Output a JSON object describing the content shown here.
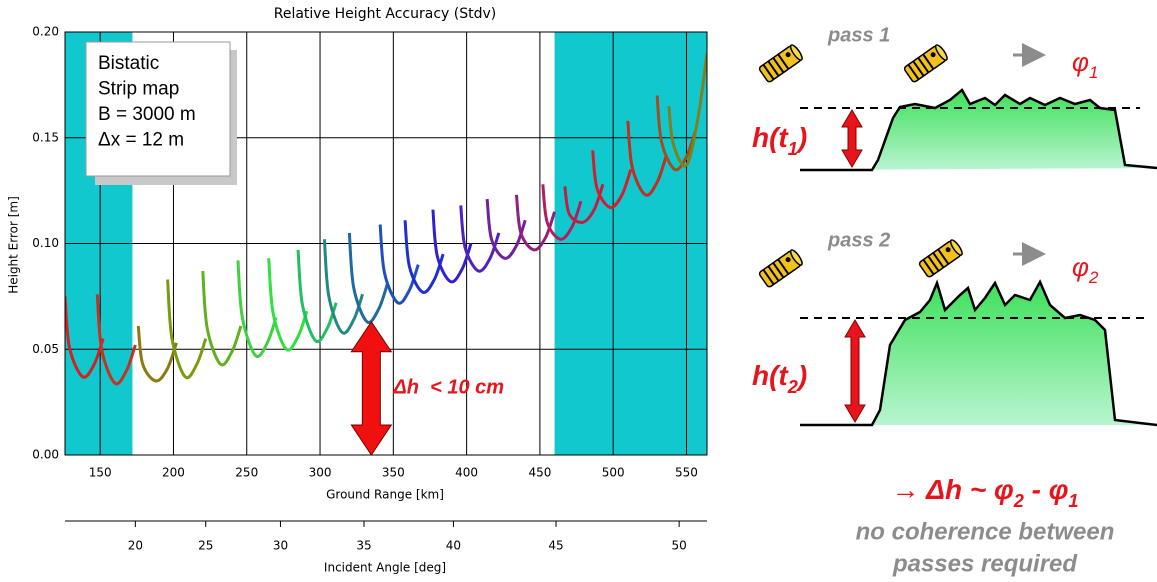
{
  "chart_data": {
    "type": "line",
    "title": "Relative Height Accuracy (Stdv)",
    "x_label": "Ground Range [km]",
    "y_label": "Height Error [m]",
    "x2_label": "Incident Angle [deg]",
    "xlim": [
      126,
      564
    ],
    "ylim": [
      0,
      0.2
    ],
    "xticks": [
      150,
      200,
      250,
      300,
      350,
      400,
      450,
      500,
      550
    ],
    "yticks": [
      {
        "value": 0,
        "label": "0.00"
      },
      {
        "value": 0.05,
        "label": "0.05"
      },
      {
        "value": 0.1,
        "label": "0.10"
      },
      {
        "value": 0.15,
        "label": "0.15"
      },
      {
        "value": 0.2,
        "label": "0.20"
      }
    ],
    "x2ticks": [
      20,
      25,
      30,
      35,
      40,
      45,
      50
    ],
    "x2tick_ground_range": [
      174,
      222,
      273,
      330,
      391,
      461,
      545
    ],
    "grid": true,
    "bands": [
      [
        126,
        172
      ],
      [
        460,
        564
      ]
    ],
    "band_color": "#12c8cf",
    "text_box": [
      "Bistatic",
      "Strip map",
      "B = 3000 m",
      "Δx = 12 m"
    ],
    "annotation": "Δh  < 10 cm",
    "series": [
      {
        "color": "#d42020",
        "x": [
          126,
          129,
          138,
          146,
          152
        ],
        "values": [
          0.075,
          0.051,
          0.037,
          0.043,
          0.055
        ]
      },
      {
        "color": "#c83020",
        "x": [
          148,
          151,
          160,
          168,
          174
        ],
        "values": [
          0.076,
          0.05,
          0.034,
          0.04,
          0.052
        ]
      },
      {
        "color": "#8a7a10",
        "x": [
          176,
          179,
          188,
          196,
          202
        ],
        "values": [
          0.061,
          0.043,
          0.035,
          0.041,
          0.053
        ]
      },
      {
        "color": "#7a9a10",
        "x": [
          196,
          199,
          208,
          216,
          222
        ],
        "values": [
          0.083,
          0.055,
          0.037,
          0.043,
          0.055
        ]
      },
      {
        "color": "#60b020",
        "x": [
          220,
          223,
          232,
          240,
          246
        ],
        "values": [
          0.087,
          0.06,
          0.043,
          0.049,
          0.061
        ]
      },
      {
        "color": "#40d040",
        "x": [
          244,
          247,
          256,
          264,
          270
        ],
        "values": [
          0.092,
          0.065,
          0.047,
          0.053,
          0.065
        ]
      },
      {
        "color": "#30e040",
        "x": [
          265,
          268,
          277,
          285,
          291
        ],
        "values": [
          0.093,
          0.067,
          0.05,
          0.056,
          0.068
        ]
      },
      {
        "color": "#20c060",
        "x": [
          285,
          288,
          297,
          305,
          311
        ],
        "values": [
          0.097,
          0.071,
          0.054,
          0.06,
          0.072
        ]
      },
      {
        "color": "#208a80",
        "x": [
          303,
          306,
          315,
          323,
          329
        ],
        "values": [
          0.102,
          0.075,
          0.058,
          0.064,
          0.076
        ]
      },
      {
        "color": "#206aa0",
        "x": [
          320,
          323,
          332,
          340,
          346
        ],
        "values": [
          0.105,
          0.079,
          0.063,
          0.069,
          0.081
        ]
      },
      {
        "color": "#2050c0",
        "x": [
          341,
          344,
          353,
          361,
          367
        ],
        "values": [
          0.109,
          0.086,
          0.072,
          0.078,
          0.09
        ]
      },
      {
        "color": "#2030d0",
        "x": [
          358,
          361,
          370,
          378,
          384
        ],
        "values": [
          0.111,
          0.089,
          0.077,
          0.083,
          0.095
        ]
      },
      {
        "color": "#3020d0",
        "x": [
          377,
          380,
          389,
          397,
          403
        ],
        "values": [
          0.116,
          0.094,
          0.082,
          0.088,
          0.1
        ]
      },
      {
        "color": "#5020c0",
        "x": [
          396,
          399,
          408,
          416,
          422
        ],
        "values": [
          0.118,
          0.098,
          0.087,
          0.093,
          0.105
        ]
      },
      {
        "color": "#7020a0",
        "x": [
          414,
          417,
          426,
          434,
          440
        ],
        "values": [
          0.121,
          0.102,
          0.093,
          0.099,
          0.111
        ]
      },
      {
        "color": "#902080",
        "x": [
          434,
          437,
          446,
          454,
          460
        ],
        "values": [
          0.123,
          0.105,
          0.097,
          0.103,
          0.115
        ]
      },
      {
        "color": "#b02060",
        "x": [
          452,
          455,
          464,
          472,
          478
        ],
        "values": [
          0.128,
          0.11,
          0.102,
          0.108,
          0.12
        ]
      },
      {
        "color": "#c02040",
        "x": [
          467,
          470,
          479,
          487,
          493
        ],
        "values": [
          0.127,
          0.114,
          0.11,
          0.116,
          0.128
        ]
      },
      {
        "color": "#d02030",
        "x": [
          486,
          489,
          498,
          506,
          512
        ],
        "values": [
          0.144,
          0.126,
          0.117,
          0.123,
          0.135
        ]
      },
      {
        "color": "#c03020",
        "x": [
          510,
          513,
          522,
          530,
          536
        ],
        "values": [
          0.158,
          0.136,
          0.123,
          0.129,
          0.141
        ]
      },
      {
        "color": "#a05020",
        "x": [
          530,
          533,
          542,
          550,
          556
        ],
        "values": [
          0.17,
          0.148,
          0.135,
          0.141,
          0.153
        ]
      },
      {
        "color": "#808020",
        "x": [
          538,
          541,
          550,
          558,
          564
        ],
        "values": [
          0.165,
          0.147,
          0.137,
          0.16,
          0.19
        ]
      }
    ]
  },
  "diagram": {
    "panels": [
      {
        "pass": "pass 1",
        "phase": [
          "φ",
          "1"
        ],
        "height": [
          "h(t",
          "1",
          ")"
        ]
      },
      {
        "pass": "pass 2",
        "phase": [
          "φ",
          "2"
        ],
        "height": [
          "h(t",
          "2",
          ")"
        ]
      }
    ],
    "formula": [
      "→ Δh ~ φ",
      "2",
      " - φ",
      "1"
    ],
    "note": [
      "no coherence between",
      "passes required"
    ]
  }
}
